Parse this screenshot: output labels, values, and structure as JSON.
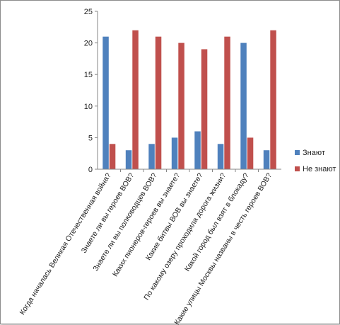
{
  "colors": {
    "know": "#4f81bd",
    "not_know": "#c0504d",
    "axis": "#868686"
  },
  "chart_data": {
    "type": "bar",
    "categories": [
      "Когда началась Великая Отечественная война?",
      "Знаете ли вы героев ВОВ?",
      "Знаете ли вы полководцев ВОВ?",
      "Каких пионеров-героев вы знаете?",
      "Какие битвы ВОВ вы знаете?",
      "По какому озеру проходила дорога жизни?",
      "Какой город был взят в блокаду?",
      "Какие улицы Москвы названы в честь героев ВОВ?"
    ],
    "series": [
      {
        "name": "Знают",
        "values": [
          21,
          3,
          4,
          5,
          6,
          4,
          20,
          3
        ]
      },
      {
        "name": "Не знают",
        "values": [
          4,
          22,
          21,
          20,
          19,
          21,
          5,
          22
        ]
      }
    ],
    "ylim": [
      0,
      25
    ],
    "yticks": [
      "0",
      "5",
      "10",
      "15",
      "20",
      "25"
    ],
    "grid": false,
    "legend": "right"
  }
}
